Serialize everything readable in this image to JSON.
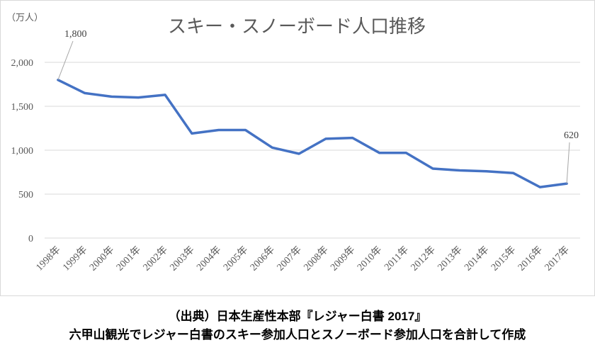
{
  "chart_data": {
    "type": "line",
    "title": "スキー・スノーボード人口推移",
    "unit_label": "（万人）",
    "categories": [
      "1998年",
      "1999年",
      "2000年",
      "2001年",
      "2002年",
      "2003年",
      "2004年",
      "2005年",
      "2006年",
      "2007年",
      "2008年",
      "2009年",
      "2010年",
      "2011年",
      "2012年",
      "2013年",
      "2014年",
      "2015年",
      "2016年",
      "2017年"
    ],
    "series": [
      {
        "values": [
          1800,
          1650,
          1610,
          1600,
          1630,
          1190,
          1230,
          1230,
          1030,
          960,
          1130,
          1140,
          970,
          970,
          790,
          770,
          760,
          740,
          580,
          620
        ]
      }
    ],
    "ylim": [
      0,
      2000
    ],
    "yticks": [
      0,
      500,
      1000,
      1500,
      2000
    ],
    "ytick_labels": [
      "0",
      "500",
      "1,000",
      "1,500",
      "2,000"
    ],
    "annotations": [
      {
        "index": 0,
        "text": "1,800"
      },
      {
        "index": 19,
        "text": "620"
      }
    ],
    "grid": true,
    "color": "#4472C4"
  },
  "footer": {
    "line1": "（出典）日本生産性本部『レジャー白書 2017』",
    "line2": "六甲山観光でレジャー白書のスキー参加人口とスノーボード参加人口を合計して作成"
  }
}
